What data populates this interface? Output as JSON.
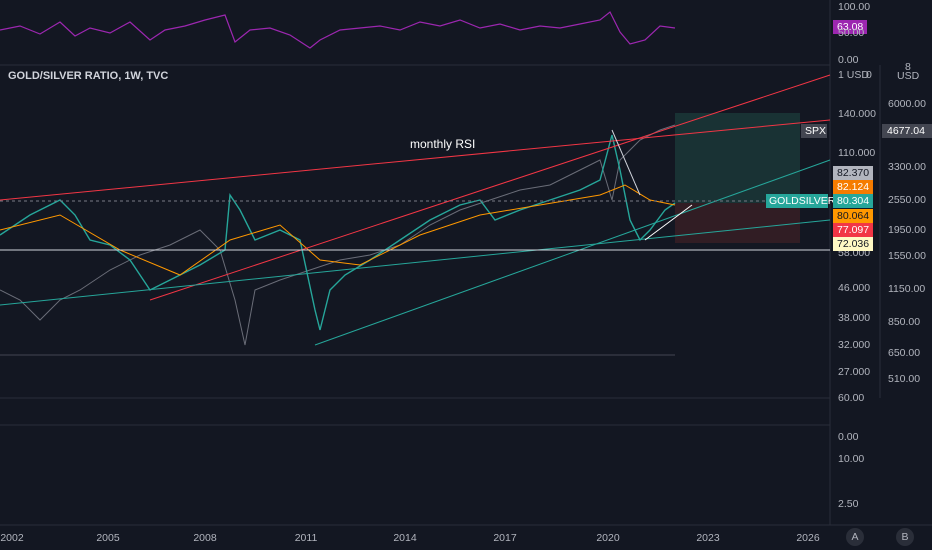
{
  "rsi_pane": {
    "axis": [
      "100.00",
      "50.00",
      "0.00"
    ],
    "value": "63.08"
  },
  "main_pane": {
    "title": "GOLD/SILVER RATIO, 1W, TVC",
    "annotation": "monthly RSI",
    "currency_left": "1 USD",
    "currency_left_suffix": "0",
    "currency_right_top": "8",
    "currency_right": "USD",
    "price_axis": [
      "140.000",
      "110.000",
      "58.000",
      "46.000",
      "38.000",
      "32.000",
      "27.000"
    ],
    "price_badges": [
      "82.370",
      "82.124",
      "80.304",
      "80.064",
      "77.097",
      "72.036"
    ],
    "symbol_label": "GOLDSILVER",
    "spx_axis": [
      "6000.00",
      "3300.00",
      "2550.00",
      "1950.00",
      "1550.00",
      "1150.00",
      "850.00",
      "650.00",
      "510.00"
    ],
    "spx_label": "SPX",
    "spx_value": "4677.04"
  },
  "lower_panes": {
    "axis": [
      "60.00",
      "0.00",
      "10.00",
      "2.50"
    ]
  },
  "time_axis": [
    "2002",
    "2005",
    "2008",
    "2011",
    "2014",
    "2017",
    "2020",
    "2023",
    "2026"
  ],
  "buttons": [
    "A",
    "B"
  ]
}
